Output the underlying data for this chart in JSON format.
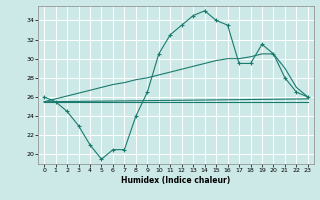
{
  "xlabel": "Humidex (Indice chaleur)",
  "xlim": [
    -0.5,
    23.5
  ],
  "ylim": [
    19,
    35.5
  ],
  "yticks": [
    20,
    22,
    24,
    26,
    28,
    30,
    32,
    34
  ],
  "xticks": [
    0,
    1,
    2,
    3,
    4,
    5,
    6,
    7,
    8,
    9,
    10,
    11,
    12,
    13,
    14,
    15,
    16,
    17,
    18,
    19,
    20,
    21,
    22,
    23
  ],
  "bg_color": "#cce9e7",
  "grid_color": "#ffffff",
  "line_color": "#1a7a6e",
  "line1_x": [
    0,
    1,
    2,
    3,
    4,
    5,
    6,
    7,
    8,
    9,
    10,
    11,
    12,
    13,
    14,
    15,
    16,
    17,
    18,
    19,
    20,
    21,
    22,
    23
  ],
  "line1_y": [
    26,
    25.5,
    24.5,
    23,
    21,
    19.5,
    20.5,
    20.5,
    24,
    26.5,
    30.5,
    32.5,
    33.5,
    34.5,
    35,
    34,
    33.5,
    29.5,
    29.5,
    31.5,
    30.5,
    28,
    26.5,
    26
  ],
  "line2_x": [
    0,
    1,
    2,
    3,
    4,
    5,
    6,
    7,
    8,
    9,
    10,
    11,
    12,
    13,
    14,
    15,
    16,
    17,
    18,
    19,
    20,
    21,
    22,
    23
  ],
  "line2_y": [
    25.5,
    25.8,
    26.1,
    26.4,
    26.7,
    27.0,
    27.3,
    27.5,
    27.8,
    28.0,
    28.3,
    28.6,
    28.9,
    29.2,
    29.5,
    29.8,
    30.0,
    30.0,
    30.2,
    30.5,
    30.5,
    29.0,
    27.0,
    26.0
  ],
  "line3_x": [
    0,
    23
  ],
  "line3_y": [
    25.5,
    25.8
  ],
  "line4_x": [
    0,
    23
  ],
  "line4_y": [
    25.5,
    25.5
  ],
  "marker": "+"
}
